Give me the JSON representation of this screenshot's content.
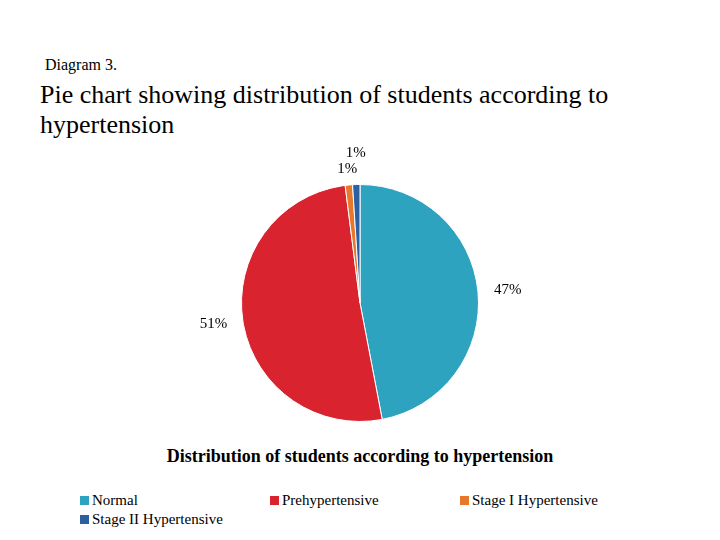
{
  "page": {
    "label": "Diagram 3.",
    "heading": "Pie chart showing distribution of students according to hypertension"
  },
  "chart_data": {
    "type": "pie",
    "title": "Distribution of students according to hypertension",
    "categories": [
      "Normal",
      "Prehypertensive",
      "Stage I Hypertensive",
      "Stage II Hypertensive"
    ],
    "values": [
      47,
      51,
      1,
      1
    ],
    "value_labels": [
      "47%",
      "51%",
      "1%",
      "1%"
    ],
    "colors": [
      "#2ea3c0",
      "#d9232e",
      "#e8762b",
      "#2e5fa0"
    ],
    "data_labels": true,
    "legend": "bottom"
  }
}
